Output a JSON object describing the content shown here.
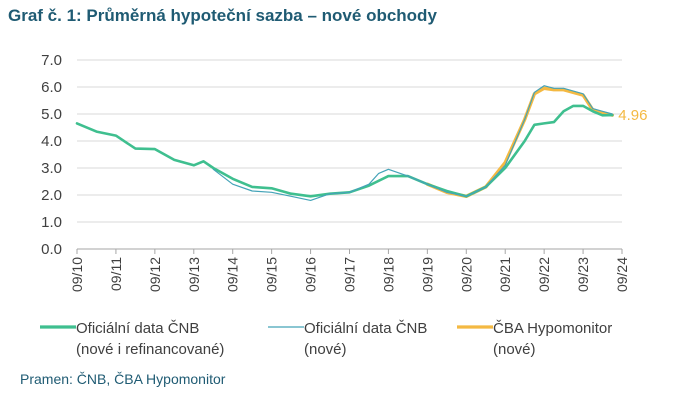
{
  "title": "Graf č. 1: Průměrná hypoteční sazba – nové obchody",
  "source": "Pramen: ČNB, ČBA Hypomonitor",
  "colors": {
    "series_total": "#3fbf8f",
    "series_new": "#44a3b8",
    "series_cba": "#f4b942"
  },
  "chart_data": {
    "type": "line",
    "title": "Graf č. 1: Průměrná hypoteční sazba – nové obchody",
    "xlabel": "",
    "ylabel": "",
    "ylim": [
      0,
      7
    ],
    "yticks": [
      "0.0",
      "1.0",
      "2.0",
      "3.0",
      "4.0",
      "5.0",
      "6.0",
      "7.0"
    ],
    "xticks": [
      "09/10",
      "09/11",
      "09/12",
      "09/13",
      "09/14",
      "09/15",
      "09/16",
      "09/17",
      "09/18",
      "09/19",
      "09/20",
      "09/21",
      "09/22",
      "09/23",
      "09/24"
    ],
    "grid": "horizontal",
    "legend": "bottom",
    "end_label": "4.96",
    "series": [
      {
        "name": "Oficiální data ČNB (nové i refinancované)",
        "legend_lines": [
          "Oficiální data ČNB",
          "(nové i refinancované)"
        ],
        "color_key": "series_total",
        "points": [
          [
            "09/10",
            4.65
          ],
          [
            "03/11",
            4.35
          ],
          [
            "09/11",
            4.2
          ],
          [
            "03/12",
            3.72
          ],
          [
            "09/12",
            3.7
          ],
          [
            "03/13",
            3.3
          ],
          [
            "09/13",
            3.1
          ],
          [
            "12/13",
            3.25
          ],
          [
            "03/14",
            3.0
          ],
          [
            "09/14",
            2.6
          ],
          [
            "03/15",
            2.3
          ],
          [
            "09/15",
            2.25
          ],
          [
            "03/16",
            2.05
          ],
          [
            "09/16",
            1.95
          ],
          [
            "03/17",
            2.05
          ],
          [
            "09/17",
            2.1
          ],
          [
            "03/18",
            2.35
          ],
          [
            "09/18",
            2.7
          ],
          [
            "03/19",
            2.7
          ],
          [
            "09/19",
            2.4
          ],
          [
            "03/20",
            2.15
          ],
          [
            "09/20",
            1.95
          ],
          [
            "03/21",
            2.3
          ],
          [
            "09/21",
            3.0
          ],
          [
            "03/22",
            4.0
          ],
          [
            "06/22",
            4.6
          ],
          [
            "09/22",
            4.65
          ],
          [
            "12/22",
            4.7
          ],
          [
            "03/23",
            5.1
          ],
          [
            "06/23",
            5.3
          ],
          [
            "09/23",
            5.3
          ],
          [
            "12/23",
            5.1
          ],
          [
            "03/24",
            4.95
          ],
          [
            "06/24",
            4.96
          ]
        ]
      },
      {
        "name": "Oficiální data ČNB (nové)",
        "legend_lines": [
          "Oficiální data ČNB",
          "(nové)"
        ],
        "color_key": "series_new",
        "points": [
          [
            "03/14",
            2.95
          ],
          [
            "09/14",
            2.4
          ],
          [
            "03/15",
            2.15
          ],
          [
            "09/15",
            2.1
          ],
          [
            "03/16",
            1.95
          ],
          [
            "09/16",
            1.8
          ],
          [
            "03/17",
            2.05
          ],
          [
            "09/17",
            2.1
          ],
          [
            "03/18",
            2.4
          ],
          [
            "06/18",
            2.8
          ],
          [
            "09/18",
            2.95
          ],
          [
            "03/19",
            2.7
          ],
          [
            "09/19",
            2.4
          ],
          [
            "03/20",
            2.1
          ],
          [
            "09/20",
            1.95
          ],
          [
            "03/21",
            2.3
          ],
          [
            "09/21",
            3.1
          ],
          [
            "03/22",
            4.8
          ],
          [
            "06/22",
            5.8
          ],
          [
            "09/22",
            6.05
          ],
          [
            "12/22",
            5.95
          ],
          [
            "03/23",
            5.95
          ],
          [
            "09/23",
            5.75
          ],
          [
            "12/23",
            5.2
          ],
          [
            "03/24",
            5.1
          ],
          [
            "06/24",
            5.0
          ]
        ]
      },
      {
        "name": "ČBA Hypomonitor (nové)",
        "legend_lines": [
          "ČBA Hypomonitor",
          "(nové)"
        ],
        "color_key": "series_cba",
        "points": [
          [
            "09/19",
            2.4
          ],
          [
            "03/20",
            2.1
          ],
          [
            "09/20",
            1.95
          ],
          [
            "03/21",
            2.3
          ],
          [
            "09/21",
            3.2
          ],
          [
            "03/22",
            4.8
          ],
          [
            "06/22",
            5.75
          ],
          [
            "09/22",
            5.95
          ],
          [
            "12/22",
            5.9
          ],
          [
            "03/23",
            5.9
          ],
          [
            "09/23",
            5.7
          ],
          [
            "12/23",
            5.15
          ],
          [
            "03/24",
            5.05
          ],
          [
            "06/24",
            4.96
          ]
        ]
      }
    ]
  }
}
